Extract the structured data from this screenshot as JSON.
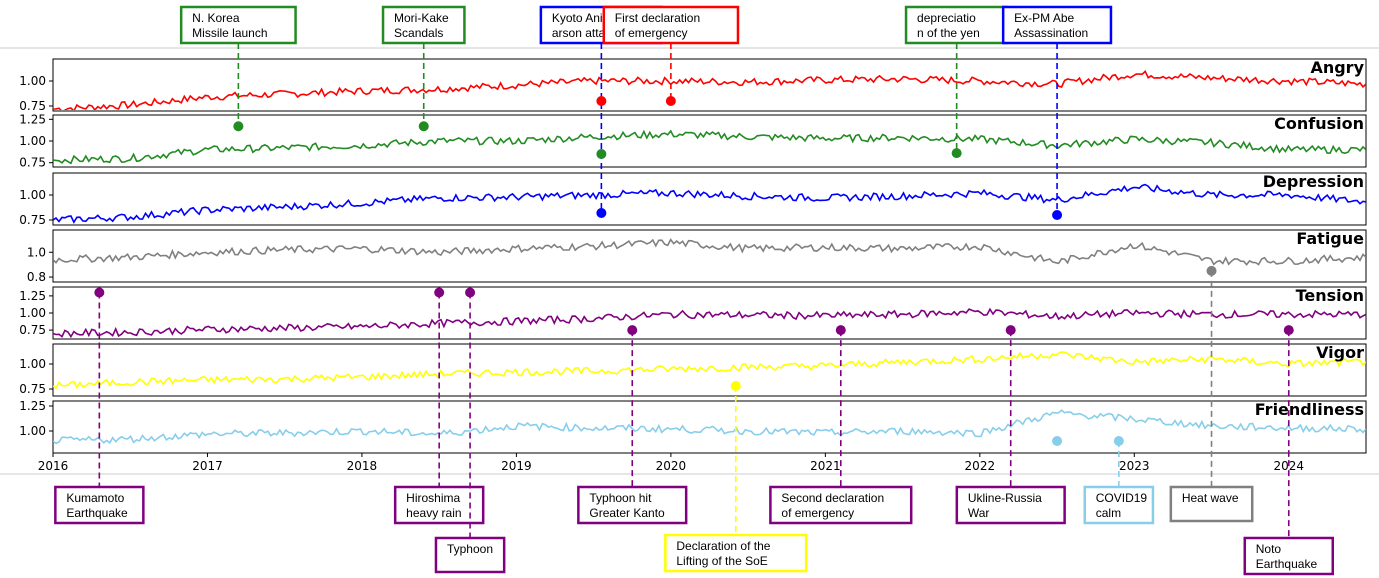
{
  "chart_data": {
    "type": "line",
    "x_range": [
      2016,
      2024.5
    ],
    "x_ticks": [
      "2016",
      "2017",
      "2018",
      "2019",
      "2020",
      "2021",
      "2022",
      "2023",
      "2024"
    ],
    "x_tick_values": [
      2016,
      2017,
      2018,
      2019,
      2020,
      2021,
      2022,
      2023,
      2024
    ],
    "panels": [
      {
        "name": "Angry",
        "color": "#ff0000",
        "ylim": [
          0.7,
          1.22
        ],
        "yticks": [
          0.75,
          1.0
        ],
        "ytick_labels": [
          "0.75",
          "1.00"
        ],
        "x": [
          2016,
          2016.5,
          2017,
          2017.5,
          2018,
          2018.5,
          2019,
          2019.5,
          2020,
          2020.5,
          2021,
          2021.5,
          2022,
          2022.5,
          2023,
          2023.5,
          2024,
          2024.5
        ],
        "values": [
          0.72,
          0.76,
          0.84,
          0.87,
          0.9,
          0.92,
          0.96,
          1.0,
          1.0,
          0.99,
          1.01,
          1.02,
          1.0,
          0.97,
          1.07,
          1.03,
          1.0,
          0.97
        ]
      },
      {
        "name": "Confusion",
        "color": "#228b22",
        "ylim": [
          0.7,
          1.3
        ],
        "yticks": [
          0.75,
          1.0,
          1.25
        ],
        "ytick_labels": [
          "0.75",
          "1.00",
          "1.25"
        ],
        "x": [
          2016,
          2016.5,
          2017,
          2017.5,
          2018,
          2018.5,
          2019,
          2019.5,
          2020,
          2020.5,
          2021,
          2021.5,
          2022,
          2022.5,
          2023,
          2023.5,
          2024,
          2024.5
        ],
        "values": [
          0.78,
          0.8,
          0.9,
          0.92,
          0.95,
          1.0,
          1.0,
          1.05,
          1.08,
          1.05,
          1.03,
          1.04,
          1.02,
          0.95,
          1.02,
          0.98,
          0.9,
          0.9
        ]
      },
      {
        "name": "Depression",
        "color": "#0000ff",
        "ylim": [
          0.7,
          1.22
        ],
        "yticks": [
          0.75,
          1.0
        ],
        "ytick_labels": [
          "0.75",
          "1.00"
        ],
        "x": [
          2016,
          2016.5,
          2017,
          2017.5,
          2018,
          2018.5,
          2019,
          2019.5,
          2020,
          2020.5,
          2021,
          2021.5,
          2022,
          2022.5,
          2023,
          2023.5,
          2024,
          2024.5
        ],
        "values": [
          0.75,
          0.78,
          0.85,
          0.88,
          0.92,
          0.97,
          0.98,
          1.0,
          1.02,
          0.99,
          0.97,
          0.99,
          1.02,
          0.95,
          1.08,
          1.0,
          1.0,
          0.93
        ]
      },
      {
        "name": "Fatigue",
        "color": "#808080",
        "ylim": [
          0.76,
          1.18
        ],
        "yticks": [
          0.8,
          1.0
        ],
        "ytick_labels": [
          "0.8",
          "1.0"
        ],
        "x": [
          2016,
          2016.5,
          2017,
          2017.5,
          2018,
          2018.5,
          2019,
          2019.5,
          2020,
          2020.5,
          2021,
          2021.5,
          2022,
          2022.5,
          2023,
          2023.5,
          2024,
          2024.5
        ],
        "values": [
          0.94,
          0.96,
          1.0,
          1.02,
          1.03,
          1.0,
          1.03,
          1.05,
          1.08,
          1.03,
          1.04,
          1.03,
          1.05,
          0.92,
          1.06,
          0.93,
          0.93,
          0.96
        ]
      },
      {
        "name": "Tension",
        "color": "#800080",
        "ylim": [
          0.62,
          1.38
        ],
        "yticks": [
          0.75,
          1.0,
          1.25
        ],
        "ytick_labels": [
          "0.75",
          "1.00",
          "1.25"
        ],
        "x": [
          2016,
          2016.5,
          2017,
          2017.5,
          2018,
          2018.5,
          2019,
          2019.5,
          2020,
          2020.5,
          2021,
          2021.5,
          2022,
          2022.5,
          2023,
          2023.5,
          2024,
          2024.5
        ],
        "values": [
          0.7,
          0.72,
          0.76,
          0.78,
          0.8,
          0.85,
          0.88,
          0.92,
          0.98,
          0.97,
          0.96,
          0.98,
          1.02,
          0.95,
          1.0,
          0.98,
          0.98,
          0.98
        ]
      },
      {
        "name": "Vigor",
        "color": "#ffff00",
        "ylim": [
          0.68,
          1.2
        ],
        "yticks": [
          0.75,
          1.0
        ],
        "ytick_labels": [
          "0.75",
          "1.00"
        ],
        "x": [
          2016,
          2016.5,
          2017,
          2017.5,
          2018,
          2018.5,
          2019,
          2019.5,
          2020,
          2020.5,
          2021,
          2021.5,
          2022,
          2022.5,
          2023,
          2023.5,
          2024,
          2024.5
        ],
        "values": [
          0.78,
          0.82,
          0.84,
          0.85,
          0.87,
          0.9,
          0.92,
          0.93,
          0.95,
          0.97,
          0.98,
          1.02,
          1.05,
          1.1,
          1.02,
          1.05,
          1.0,
          1.02
        ]
      },
      {
        "name": "Friendliness",
        "color": "#87ceeb",
        "ylim": [
          0.78,
          1.3
        ],
        "yticks": [
          1.0,
          1.25
        ],
        "ytick_labels": [
          "1.00",
          "1.25"
        ],
        "x": [
          2016,
          2016.5,
          2017,
          2017.5,
          2018,
          2018.5,
          2019,
          2019.5,
          2020,
          2020.5,
          2021,
          2021.5,
          2022,
          2022.5,
          2023,
          2023.5,
          2024,
          2024.5
        ],
        "values": [
          0.9,
          0.92,
          0.97,
          0.98,
          1.0,
          0.97,
          1.05,
          1.03,
          1.02,
          1.0,
          0.98,
          1.0,
          0.98,
          1.18,
          1.12,
          1.05,
          1.03,
          1.02
        ]
      }
    ],
    "events": [
      {
        "label": "N. Korea\nMissile launch",
        "x": 2017.2,
        "panel": 1,
        "value": 1.17,
        "color": "#228b22",
        "side": "top"
      },
      {
        "label": "Mori-Kake\nScandals",
        "x": 2018.4,
        "panel": 1,
        "value": 1.17,
        "color": "#228b22",
        "side": "top"
      },
      {
        "label": "Kyoto Animation\narson attack",
        "x": 2019.55,
        "panel": 2,
        "value": 0.82,
        "color": "#0000ff",
        "side": "top",
        "extra_dots": [
          {
            "panel": 0,
            "value": 0.8,
            "color": "#ff0000"
          },
          {
            "panel": 1,
            "value": 0.85,
            "color": "#228b22"
          }
        ]
      },
      {
        "label": "First declaration\nof emergency",
        "x": 2020.0,
        "panel": 0,
        "value": 0.8,
        "color": "#ff0000",
        "side": "top"
      },
      {
        "label": "depreciatio\nn of the yen",
        "x": 2021.85,
        "panel": 1,
        "value": 0.86,
        "color": "#228b22",
        "side": "top"
      },
      {
        "label": "Ex-PM Abe\nAssassination",
        "x": 2022.5,
        "panel": 2,
        "value": 0.8,
        "color": "#0000ff",
        "side": "top"
      },
      {
        "label": "Kumamoto\nEarthquake",
        "x": 2016.3,
        "panel": 4,
        "value": 1.3,
        "color": "#800080",
        "side": "bottom",
        "row": 1
      },
      {
        "label": "Hiroshima\nheavy rain",
        "x": 2018.5,
        "panel": 4,
        "value": 1.3,
        "color": "#800080",
        "side": "bottom",
        "row": 1
      },
      {
        "label": "Typhoon",
        "x": 2018.7,
        "panel": 4,
        "value": 1.3,
        "color": "#800080",
        "side": "bottom",
        "row": 2
      },
      {
        "label": "Typhoon hit\nGreater Kanto",
        "x": 2019.75,
        "panel": 4,
        "value": 0.75,
        "color": "#800080",
        "side": "bottom",
        "row": 1
      },
      {
        "label": "Declaration of the\nLifting of the SoE",
        "x": 2020.42,
        "panel": 5,
        "value": 0.78,
        "color": "#ffff00",
        "side": "bottom",
        "row": 3
      },
      {
        "label": "Second declaration\nof emergency",
        "x": 2021.1,
        "panel": 4,
        "value": 0.75,
        "color": "#800080",
        "side": "bottom",
        "row": 1
      },
      {
        "label": "Ukline-Russia\nWar",
        "x": 2022.2,
        "panel": 4,
        "value": 0.75,
        "color": "#800080",
        "side": "bottom",
        "row": 1
      },
      {
        "label": "COVID19\ncalm",
        "x": 2022.9,
        "panel": 6,
        "value": 0.9,
        "color": "#87ceeb",
        "side": "bottom",
        "row": 1,
        "extra_dots": [
          {
            "panel": 6,
            "value": 0.9,
            "color": "#87ceeb",
            "x": 2022.5
          }
        ]
      },
      {
        "label": "Heat wave",
        "x": 2023.5,
        "panel": 3,
        "value": 0.85,
        "color": "#808080",
        "side": "bottom",
        "row": 1
      },
      {
        "label": "Noto\nEarthquake",
        "x": 2024.0,
        "panel": 4,
        "value": 0.75,
        "color": "#800080",
        "side": "bottom",
        "row": 2
      }
    ]
  }
}
